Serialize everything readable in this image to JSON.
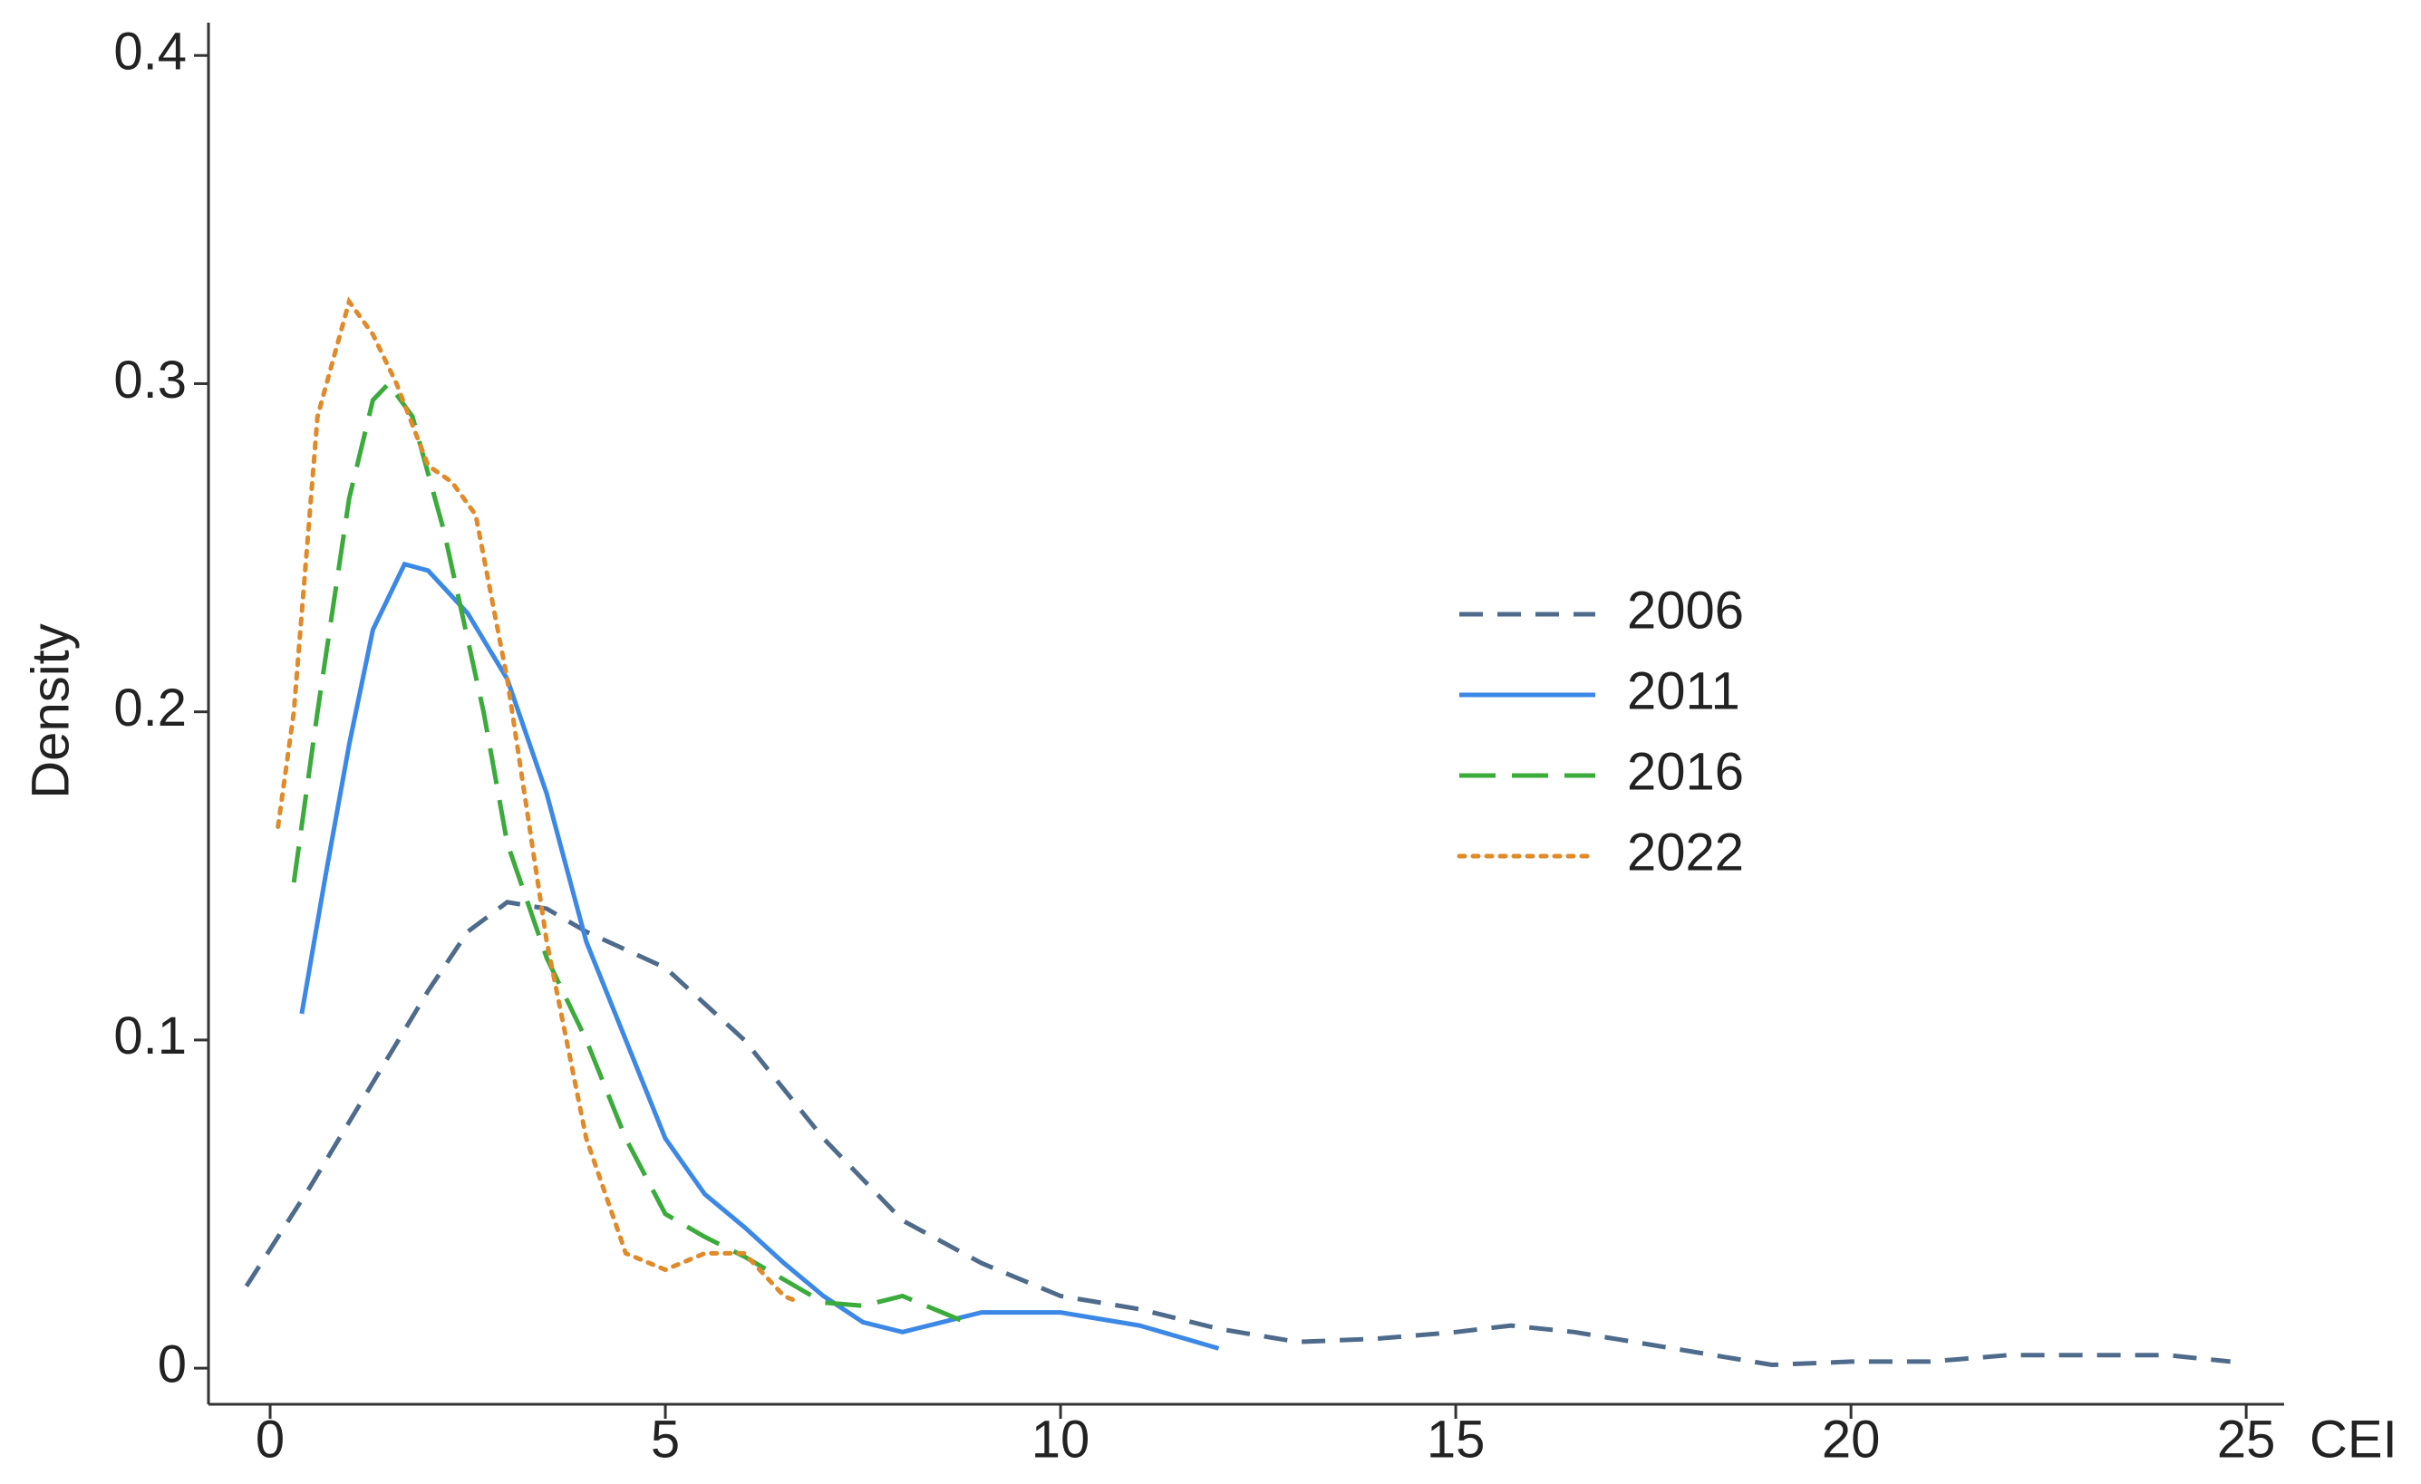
{
  "chart_data": {
    "type": "line",
    "x_label": "CEI",
    "y_label": "Density",
    "xlim": [
      -0.78,
      25.48
    ],
    "ylim": [
      -0.011,
      0.41
    ],
    "xticks": [
      0,
      5,
      10,
      15,
      20,
      25
    ],
    "yticks": [
      0,
      0.1,
      0.2,
      0.3,
      0.4
    ],
    "grid": false,
    "legend": "right",
    "series": [
      {
        "name": "2006",
        "color": "#4f6b8c",
        "dash": "dashed",
        "x": [
          -0.3,
          0.5,
          1,
          1.5,
          2,
          2.5,
          3,
          3.5,
          4,
          5,
          6,
          7,
          8,
          9,
          10,
          11,
          12,
          13,
          14,
          15,
          15.7,
          16.5,
          18,
          19,
          20,
          21,
          22,
          24,
          24.8
        ],
        "values": [
          0.025,
          0.055,
          0.075,
          0.095,
          0.115,
          0.133,
          0.142,
          0.14,
          0.133,
          0.122,
          0.1,
          0.07,
          0.045,
          0.032,
          0.022,
          0.018,
          0.012,
          0.008,
          0.009,
          0.011,
          0.013,
          0.011,
          0.005,
          0.001,
          0.002,
          0.002,
          0.004,
          0.004,
          0.002
        ]
      },
      {
        "name": "2011",
        "color": "#3b88e6",
        "dash": "solid",
        "x": [
          0.4,
          0.7,
          1,
          1.3,
          1.7,
          2,
          2.5,
          3,
          3.5,
          4,
          4.5,
          5,
          5.5,
          6,
          6.5,
          7,
          7.5,
          8,
          8.5,
          9,
          10,
          11,
          12
        ],
        "values": [
          0.108,
          0.15,
          0.19,
          0.225,
          0.245,
          0.243,
          0.23,
          0.21,
          0.175,
          0.13,
          0.1,
          0.07,
          0.053,
          0.043,
          0.032,
          0.022,
          0.014,
          0.011,
          0.014,
          0.017,
          0.017,
          0.013,
          0.006
        ]
      },
      {
        "name": "2016",
        "color": "#3bab3b",
        "dash": "longdash",
        "x": [
          0.3,
          0.6,
          1,
          1.3,
          1.5,
          1.8,
          2.2,
          2.7,
          3,
          3.5,
          4,
          4.5,
          5,
          5.5,
          6,
          6.5,
          7,
          7.5,
          8,
          8.5,
          8.8
        ],
        "values": [
          0.148,
          0.2,
          0.265,
          0.295,
          0.3,
          0.29,
          0.255,
          0.2,
          0.16,
          0.125,
          0.1,
          0.07,
          0.047,
          0.04,
          0.034,
          0.027,
          0.02,
          0.019,
          0.022,
          0.017,
          0.014
        ]
      },
      {
        "name": "2022",
        "color": "#e08a2a",
        "dash": "dotted",
        "x": [
          0.1,
          0.3,
          0.6,
          1,
          1.3,
          1.6,
          2,
          2.3,
          2.6,
          3,
          3.5,
          4,
          4.5,
          5,
          5.5,
          6,
          6.5,
          6.7
        ],
        "values": [
          0.165,
          0.2,
          0.29,
          0.325,
          0.315,
          0.3,
          0.275,
          0.27,
          0.26,
          0.21,
          0.13,
          0.07,
          0.035,
          0.03,
          0.035,
          0.035,
          0.022,
          0.02
        ]
      }
    ]
  }
}
